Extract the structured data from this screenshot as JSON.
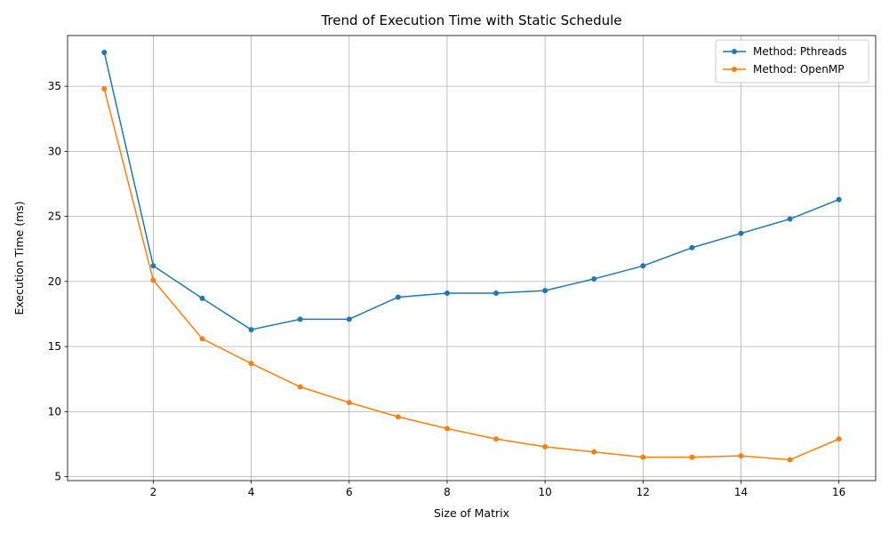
{
  "chart_data": {
    "type": "line",
    "title": "Trend of Execution Time with Static Schedule",
    "xlabel": "Size of Matrix",
    "ylabel": "Execution Time (ms)",
    "x": [
      1,
      2,
      3,
      4,
      5,
      6,
      7,
      8,
      9,
      10,
      11,
      12,
      13,
      14,
      15,
      16
    ],
    "xlim": [
      0.25,
      16.75
    ],
    "ylim": [
      4.7,
      38.9
    ],
    "xticks": [
      2,
      4,
      6,
      8,
      10,
      12,
      14,
      16
    ],
    "yticks": [
      5,
      10,
      15,
      20,
      25,
      30,
      35
    ],
    "grid": true,
    "legend_position": "top-right",
    "series": [
      {
        "name": "Method: Pthreads",
        "color": "#1f77b4",
        "values": [
          37.6,
          21.2,
          18.7,
          16.3,
          17.1,
          17.1,
          18.8,
          19.1,
          19.1,
          19.3,
          20.2,
          21.2,
          22.6,
          23.7,
          24.8,
          26.3
        ]
      },
      {
        "name": "Method: OpenMP",
        "color": "#ff7f0e",
        "values": [
          34.8,
          20.1,
          15.6,
          13.7,
          11.9,
          10.7,
          9.6,
          8.7,
          7.9,
          7.3,
          6.9,
          6.5,
          6.5,
          6.6,
          6.3,
          7.9
        ]
      }
    ]
  }
}
